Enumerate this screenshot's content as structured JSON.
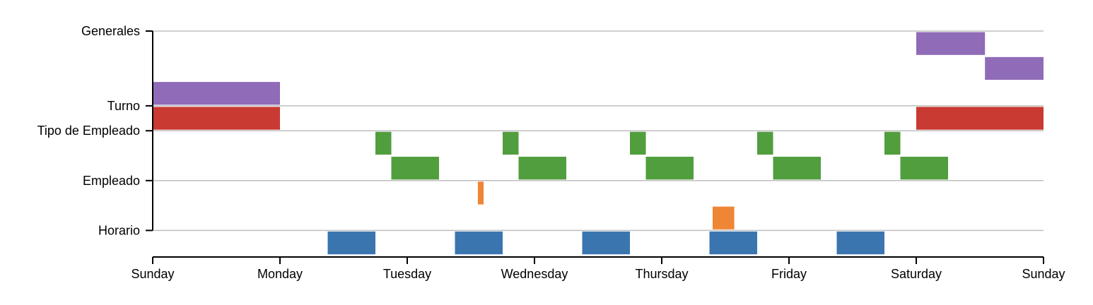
{
  "chart_data": {
    "type": "timeline",
    "title": "",
    "x_unit": "days since Sunday",
    "xlim": [
      0,
      7
    ],
    "x_ticks": [
      {
        "value": 0,
        "label": "Sunday"
      },
      {
        "value": 1,
        "label": "Monday"
      },
      {
        "value": 2,
        "label": "Tuesday"
      },
      {
        "value": 3,
        "label": "Wednesday"
      },
      {
        "value": 4,
        "label": "Thursday"
      },
      {
        "value": 5,
        "label": "Friday"
      },
      {
        "value": 6,
        "label": "Saturday"
      },
      {
        "value": 7,
        "label": "Sunday"
      }
    ],
    "categories": [
      {
        "name": "Generales",
        "row": 0
      },
      {
        "name": "Turno",
        "row": 3
      },
      {
        "name": "Tipo de Empleado",
        "row": 4
      },
      {
        "name": "Empleado",
        "row": 6
      },
      {
        "name": "Horario",
        "row": 8
      }
    ],
    "row_count": 9,
    "colors": {
      "purple": "#8f6bb8",
      "red": "#c93a32",
      "green": "#519e3e",
      "orange": "#ef8636",
      "blue": "#3b75af"
    },
    "bars": [
      {
        "row": 0,
        "start": 6.0,
        "end": 6.54,
        "color": "purple"
      },
      {
        "row": 1,
        "start": 6.54,
        "end": 7.0,
        "color": "purple"
      },
      {
        "row": 2,
        "start": 0.0,
        "end": 1.0,
        "color": "purple"
      },
      {
        "row": 3,
        "start": 0.0,
        "end": 1.0,
        "color": "red"
      },
      {
        "row": 3,
        "start": 6.0,
        "end": 7.0,
        "color": "red"
      },
      {
        "row": 4,
        "start": 1.75,
        "end": 1.875,
        "color": "green"
      },
      {
        "row": 5,
        "start": 1.875,
        "end": 2.25,
        "color": "green"
      },
      {
        "row": 4,
        "start": 2.75,
        "end": 2.875,
        "color": "green"
      },
      {
        "row": 5,
        "start": 2.875,
        "end": 3.25,
        "color": "green"
      },
      {
        "row": 4,
        "start": 3.75,
        "end": 3.875,
        "color": "green"
      },
      {
        "row": 5,
        "start": 3.875,
        "end": 4.25,
        "color": "green"
      },
      {
        "row": 4,
        "start": 4.75,
        "end": 4.875,
        "color": "green"
      },
      {
        "row": 5,
        "start": 4.875,
        "end": 5.25,
        "color": "green"
      },
      {
        "row": 4,
        "start": 5.75,
        "end": 5.875,
        "color": "green"
      },
      {
        "row": 5,
        "start": 5.875,
        "end": 6.25,
        "color": "green"
      },
      {
        "row": 6,
        "start": 2.555,
        "end": 2.6,
        "color": "orange"
      },
      {
        "row": 7,
        "start": 4.4,
        "end": 4.57,
        "color": "orange"
      },
      {
        "row": 8,
        "start": 1.375,
        "end": 1.75,
        "color": "blue"
      },
      {
        "row": 8,
        "start": 2.375,
        "end": 2.75,
        "color": "blue"
      },
      {
        "row": 8,
        "start": 3.375,
        "end": 3.75,
        "color": "blue"
      },
      {
        "row": 8,
        "start": 4.375,
        "end": 4.75,
        "color": "blue"
      },
      {
        "row": 8,
        "start": 5.375,
        "end": 5.75,
        "color": "blue"
      }
    ]
  }
}
